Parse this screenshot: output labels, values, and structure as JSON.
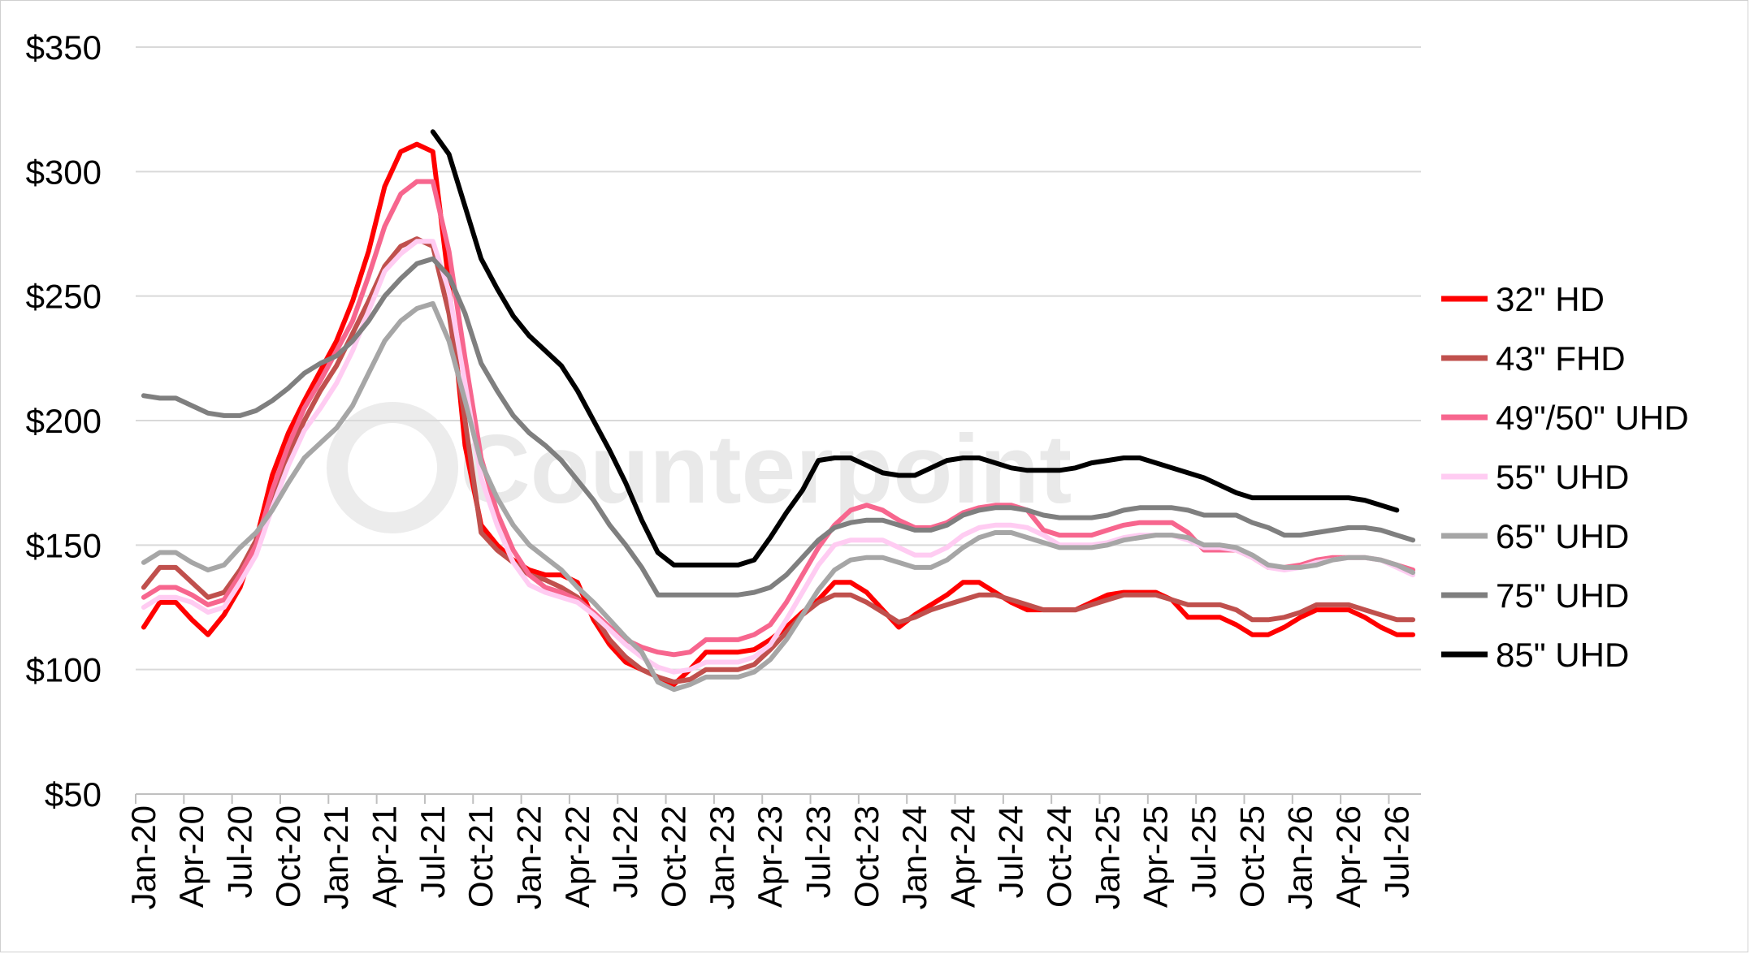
{
  "watermark": "Counterpoint",
  "chart_data": {
    "type": "line",
    "title": "",
    "xlabel": "",
    "ylabel": "",
    "ylim": [
      50,
      350
    ],
    "y_ticks": [
      "$50",
      "$100",
      "$150",
      "$200",
      "$250",
      "$300",
      "$350"
    ],
    "y_tick_values": [
      50,
      100,
      150,
      200,
      250,
      300,
      350
    ],
    "grid": "horizontal",
    "legend_position": "right",
    "x_tick_labels": [
      "Jan-20",
      "Apr-20",
      "Jul-20",
      "Oct-20",
      "Jan-21",
      "Apr-21",
      "Jul-21",
      "Oct-21",
      "Jan-22",
      "Apr-22",
      "Jul-22",
      "Oct-22",
      "Jan-23",
      "Apr-23",
      "Jul-23",
      "Oct-23",
      "Jan-24",
      "Apr-24",
      "Jul-24",
      "Oct-24",
      "Jan-25",
      "Apr-25",
      "Jul-25",
      "Oct-25",
      "Jan-26",
      "Apr-26",
      "Jul-26"
    ],
    "x_months": [
      "Jan-20",
      "Feb-20",
      "Mar-20",
      "Apr-20",
      "May-20",
      "Jun-20",
      "Jul-20",
      "Aug-20",
      "Sep-20",
      "Oct-20",
      "Nov-20",
      "Dec-20",
      "Jan-21",
      "Feb-21",
      "Mar-21",
      "Apr-21",
      "May-21",
      "Jun-21",
      "Jul-21",
      "Aug-21",
      "Sep-21",
      "Oct-21",
      "Nov-21",
      "Dec-21",
      "Jan-22",
      "Feb-22",
      "Mar-22",
      "Apr-22",
      "May-22",
      "Jun-22",
      "Jul-22",
      "Aug-22",
      "Sep-22",
      "Oct-22",
      "Nov-22",
      "Dec-22",
      "Jan-23",
      "Feb-23",
      "Mar-23",
      "Apr-23",
      "May-23",
      "Jun-23",
      "Jul-23",
      "Aug-23",
      "Sep-23",
      "Oct-23",
      "Nov-23",
      "Dec-23",
      "Jan-24",
      "Feb-24",
      "Mar-24",
      "Apr-24",
      "May-24",
      "Jun-24",
      "Jul-24",
      "Aug-24",
      "Sep-24",
      "Oct-24",
      "Nov-24",
      "Dec-24",
      "Jan-25",
      "Feb-25",
      "Mar-25",
      "Apr-25",
      "May-25",
      "Jun-25",
      "Jul-25",
      "Aug-25",
      "Sep-25",
      "Oct-25",
      "Nov-25",
      "Dec-25",
      "Jan-26",
      "Feb-26",
      "Mar-26",
      "Apr-26",
      "May-26",
      "Jun-26",
      "Jul-26",
      "Aug-26"
    ],
    "series": [
      {
        "name": "32\" HD",
        "color": "#ff0000",
        "start": "Jan-20",
        "values": [
          117,
          127,
          127,
          120,
          114,
          122,
          133,
          152,
          178,
          195,
          208,
          220,
          232,
          248,
          268,
          294,
          308,
          311,
          308,
          255,
          190,
          158,
          150,
          144,
          140,
          138,
          138,
          135,
          120,
          110,
          103,
          100,
          97,
          94,
          100,
          107,
          107,
          107,
          108,
          112,
          117,
          123,
          128,
          135,
          135,
          131,
          124,
          117,
          122,
          126,
          130,
          135,
          135,
          131,
          127,
          124,
          124,
          124,
          124,
          127,
          130,
          131,
          131,
          131,
          128,
          121,
          121,
          121,
          118,
          114,
          114,
          117,
          121,
          124,
          124,
          124,
          121,
          117,
          114,
          114
        ]
      },
      {
        "name": "43\" FHD",
        "color": "#c0504d",
        "start": "Jan-20",
        "values": [
          133,
          141,
          141,
          135,
          129,
          131,
          140,
          152,
          170,
          186,
          200,
          212,
          222,
          235,
          248,
          262,
          270,
          273,
          270,
          243,
          200,
          155,
          148,
          143,
          138,
          136,
          133,
          129,
          122,
          112,
          105,
          100,
          97,
          95,
          96,
          100,
          100,
          100,
          102,
          108,
          115,
          122,
          127,
          130,
          130,
          127,
          123,
          119,
          121,
          124,
          126,
          128,
          130,
          130,
          128,
          126,
          124,
          124,
          124,
          126,
          128,
          130,
          130,
          130,
          128,
          126,
          126,
          126,
          124,
          120,
          120,
          121,
          123,
          126,
          126,
          126,
          124,
          122,
          120,
          120
        ]
      },
      {
        "name": "49\"/50\" UHD",
        "color": "#f7668e",
        "start": "Jan-20",
        "values": [
          129,
          133,
          133,
          130,
          126,
          128,
          138,
          150,
          172,
          190,
          205,
          216,
          228,
          240,
          258,
          278,
          291,
          296,
          296,
          268,
          225,
          185,
          163,
          148,
          138,
          133,
          131,
          128,
          123,
          117,
          112,
          109,
          107,
          106,
          107,
          112,
          112,
          112,
          114,
          118,
          127,
          138,
          149,
          158,
          164,
          166,
          164,
          160,
          157,
          157,
          159,
          163,
          165,
          166,
          166,
          164,
          156,
          154,
          154,
          154,
          156,
          158,
          159,
          159,
          159,
          155,
          148,
          148,
          148,
          145,
          141,
          141,
          142,
          144,
          145,
          145,
          145,
          144,
          142,
          140
        ]
      },
      {
        "name": "55\" UHD",
        "color": "#ffccf2",
        "start": "Jan-20",
        "values": [
          125,
          129,
          129,
          127,
          123,
          125,
          135,
          146,
          165,
          182,
          196,
          205,
          215,
          228,
          244,
          260,
          267,
          272,
          272,
          252,
          215,
          177,
          158,
          143,
          134,
          131,
          129,
          127,
          122,
          116,
          110,
          105,
          101,
          99,
          100,
          103,
          103,
          103,
          105,
          110,
          120,
          131,
          142,
          150,
          152,
          152,
          152,
          149,
          146,
          146,
          149,
          154,
          157,
          158,
          158,
          157,
          154,
          150,
          150,
          150,
          151,
          153,
          154,
          154,
          154,
          152,
          149,
          149,
          148,
          145,
          141,
          140,
          141,
          143,
          144,
          145,
          145,
          144,
          141,
          138
        ]
      },
      {
        "name": "65\" UHD",
        "color": "#a6a6a6",
        "start": "Jan-20",
        "values": [
          143,
          147,
          147,
          143,
          140,
          142,
          149,
          155,
          164,
          175,
          185,
          191,
          197,
          206,
          219,
          232,
          240,
          245,
          247,
          232,
          208,
          183,
          169,
          158,
          150,
          145,
          140,
          133,
          127,
          120,
          113,
          107,
          95,
          92,
          94,
          97,
          97,
          97,
          99,
          104,
          112,
          122,
          132,
          140,
          144,
          145,
          145,
          143,
          141,
          141,
          144,
          149,
          153,
          155,
          155,
          153,
          151,
          149,
          149,
          149,
          150,
          152,
          153,
          154,
          154,
          153,
          150,
          150,
          149,
          146,
          142,
          141,
          141,
          142,
          144,
          145,
          145,
          144,
          142,
          139
        ]
      },
      {
        "name": "75\" UHD",
        "color": "#7f7f7f",
        "start": "Jan-20",
        "values": [
          210,
          209,
          209,
          206,
          203,
          202,
          202,
          204,
          208,
          213,
          219,
          223,
          226,
          232,
          240,
          250,
          257,
          263,
          265,
          258,
          243,
          223,
          212,
          202,
          195,
          190,
          184,
          176,
          168,
          158,
          150,
          141,
          130,
          130,
          130,
          130,
          130,
          130,
          131,
          133,
          138,
          145,
          152,
          157,
          159,
          160,
          160,
          158,
          156,
          156,
          158,
          162,
          164,
          165,
          165,
          164,
          162,
          161,
          161,
          161,
          162,
          164,
          165,
          165,
          165,
          164,
          162,
          162,
          162,
          159,
          157,
          154,
          154,
          155,
          156,
          157,
          157,
          156,
          154,
          152
        ]
      },
      {
        "name": "85\" UHD",
        "color": "#000000",
        "start": "Jul-21",
        "values": [
          316,
          307,
          286,
          265,
          253,
          242,
          234,
          228,
          222,
          212,
          200,
          188,
          175,
          160,
          147,
          142,
          142,
          142,
          142,
          142,
          144,
          153,
          163,
          172,
          184,
          185,
          185,
          182,
          179,
          178,
          178,
          181,
          184,
          185,
          185,
          183,
          181,
          180,
          180,
          180,
          181,
          183,
          184,
          185,
          185,
          183,
          181,
          179,
          177,
          174,
          171,
          169,
          169,
          169,
          169,
          169,
          169,
          169,
          168,
          166,
          164
        ]
      }
    ]
  }
}
